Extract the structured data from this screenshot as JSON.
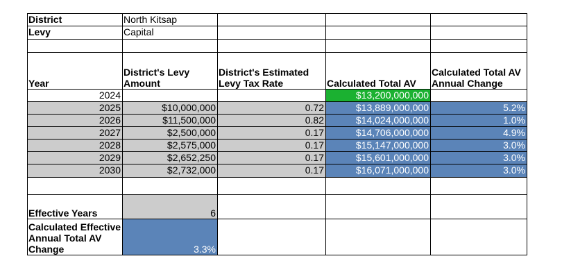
{
  "colors": {
    "gray_fill": "#cccccc",
    "blue_fill": "#5b84b8",
    "green_fill": "#1bb131"
  },
  "info": {
    "district_label": "District",
    "district_value": "North Kitsap",
    "levy_label": "Levy",
    "levy_value": "Capital"
  },
  "headers": {
    "year": "Year",
    "levy_amount": "District's Levy Amount",
    "tax_rate": "District's Estimated Levy Tax Rate",
    "total_av": "Calculated Total AV",
    "av_change": "Calculated Total AV Annual Change"
  },
  "rows": [
    {
      "year": "2024",
      "levy_amount": "",
      "tax_rate": "",
      "total_av": "$13,200,000,000",
      "av_change": ""
    },
    {
      "year": "2025",
      "levy_amount": "$10,000,000",
      "tax_rate": "0.72",
      "total_av": "$13,889,000,000",
      "av_change": "5.2%"
    },
    {
      "year": "2026",
      "levy_amount": "$11,500,000",
      "tax_rate": "0.82",
      "total_av": "$14,024,000,000",
      "av_change": "1.0%"
    },
    {
      "year": "2027",
      "levy_amount": "$2,500,000",
      "tax_rate": "0.17",
      "total_av": "$14,706,000,000",
      "av_change": "4.9%"
    },
    {
      "year": "2028",
      "levy_amount": "$2,575,000",
      "tax_rate": "0.17",
      "total_av": "$15,147,000,000",
      "av_change": "3.0%"
    },
    {
      "year": "2029",
      "levy_amount": "$2,652,250",
      "tax_rate": "0.17",
      "total_av": "$15,601,000,000",
      "av_change": "3.0%"
    },
    {
      "year": "2030",
      "levy_amount": "$2,732,000",
      "tax_rate": "0.17",
      "total_av": "$16,071,000,000",
      "av_change": "3.0%"
    }
  ],
  "summary": {
    "effective_years_label": "Effective Years",
    "effective_years_value": "6",
    "effective_change_label": "Calculated Effective Annual Total AV Change",
    "effective_change_value": "3.3%"
  }
}
